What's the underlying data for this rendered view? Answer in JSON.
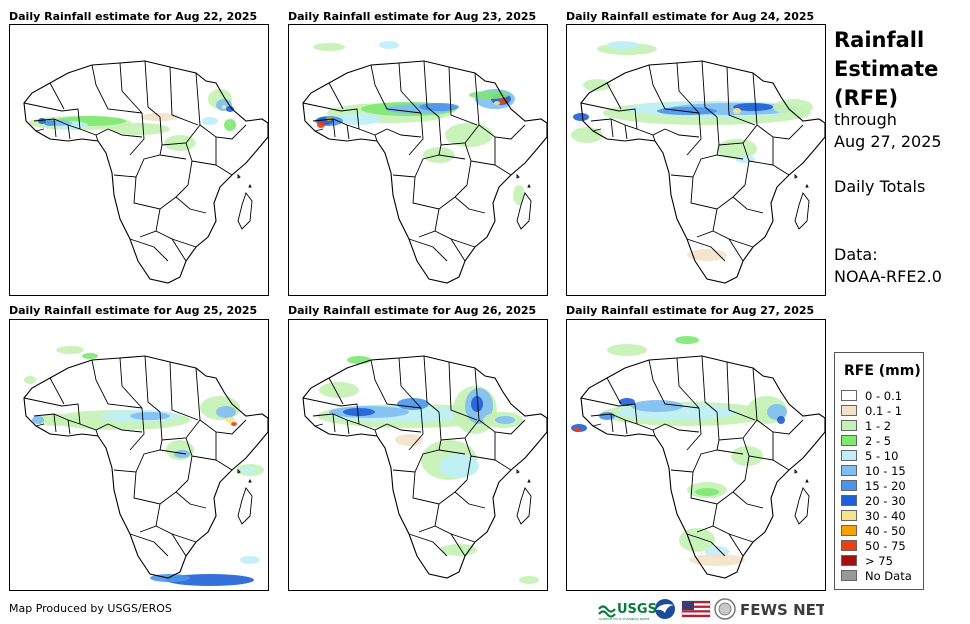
{
  "panels": [
    {
      "title": "Daily Rainfall estimate for Aug 22, 2025"
    },
    {
      "title": "Daily Rainfall estimate for Aug 23, 2025"
    },
    {
      "title": "Daily Rainfall estimate for Aug 24, 2025"
    },
    {
      "title": "Daily Rainfall estimate for Aug 25, 2025"
    },
    {
      "title": "Daily Rainfall estimate for Aug 26, 2025"
    },
    {
      "title": "Daily Rainfall estimate for Aug 27, 2025"
    }
  ],
  "sidebar": {
    "title_line1": "Rainfall",
    "title_line2": "Estimate",
    "title_line3": "(RFE)",
    "through_label": "through",
    "through_date": "Aug 27, 2025",
    "period": "Daily Totals",
    "data_label": "Data:",
    "data_source": "NOAA-RFE2.0"
  },
  "legend": {
    "title": "RFE (mm)",
    "items": [
      {
        "label": "0 - 0.1",
        "color": "#ffffff"
      },
      {
        "label": "0.1 - 1",
        "color": "#f2e2c9"
      },
      {
        "label": "1 - 2",
        "color": "#c4f2b4"
      },
      {
        "label": "2 - 5",
        "color": "#7ee871"
      },
      {
        "label": "5 - 10",
        "color": "#bfeefb"
      },
      {
        "label": "10 - 15",
        "color": "#7fbef3"
      },
      {
        "label": "15 - 20",
        "color": "#4a95ec"
      },
      {
        "label": "20 - 30",
        "color": "#1f5fd6"
      },
      {
        "label": "30 - 40",
        "color": "#f8e38d"
      },
      {
        "label": "40 - 50",
        "color": "#f5a300"
      },
      {
        "label": "50 - 75",
        "color": "#ef3e10"
      },
      {
        "label": "> 75",
        "color": "#a31010"
      },
      {
        "label": "No Data",
        "color": "#999999"
      }
    ]
  },
  "footer": {
    "credit": "Map Produced by USGS/EROS",
    "usgs_logo": "USGS",
    "usgs_tagline": "science for a changing world",
    "fews_logo": "FEWS NET"
  }
}
